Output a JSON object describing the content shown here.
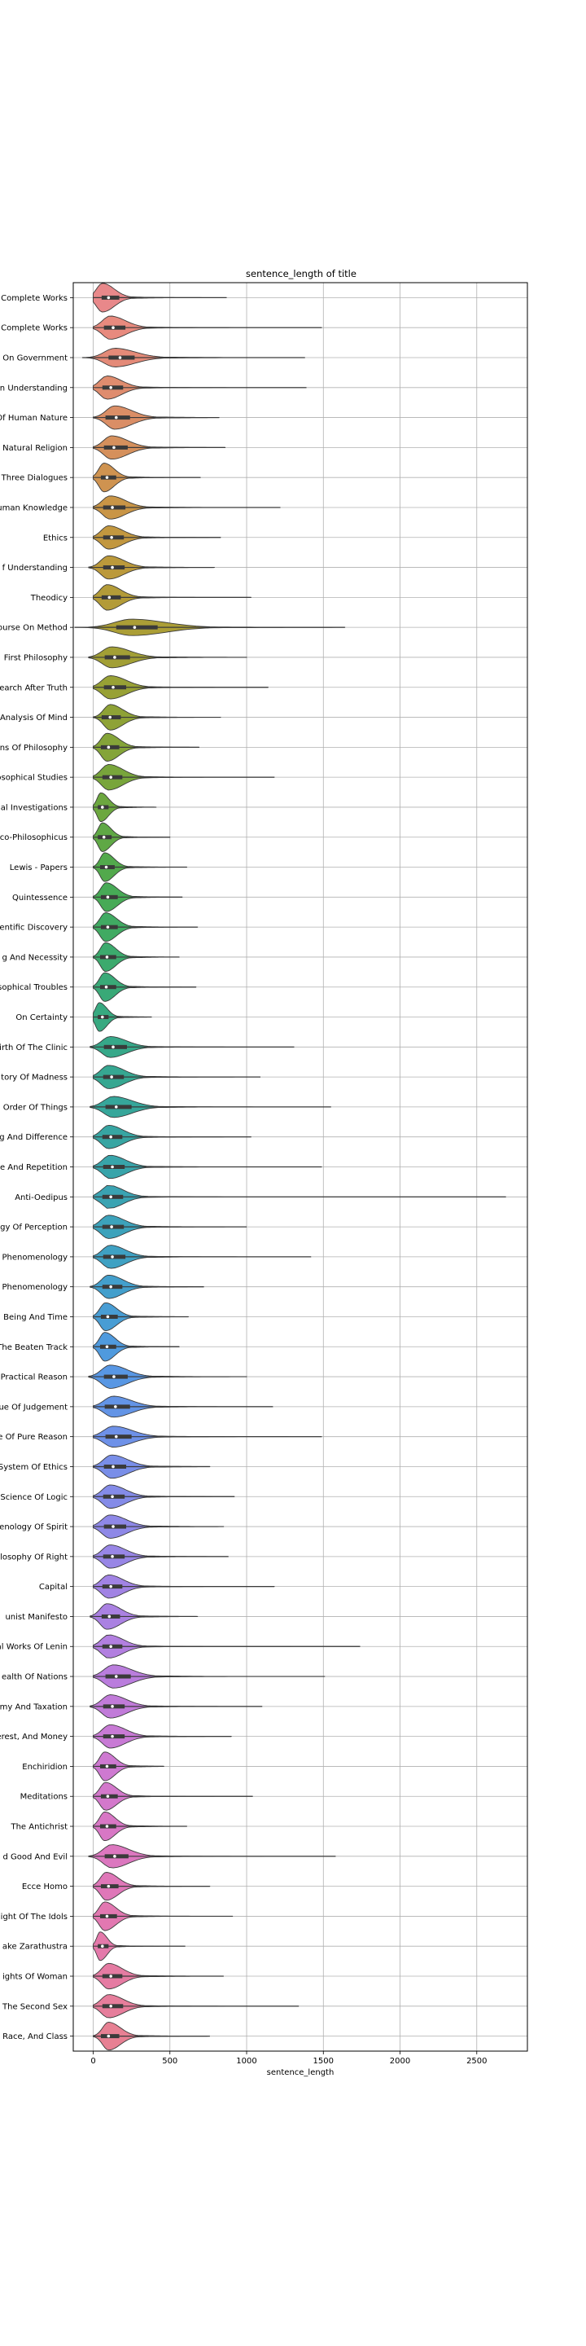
{
  "chart_data": {
    "type": "violin",
    "title": "sentence_length of title",
    "xlabel": "sentence_length",
    "ylabel": "",
    "xlim": [
      -130,
      2830
    ],
    "xticks": [
      0,
      500,
      1000,
      1500,
      2000,
      2500
    ],
    "grid": true,
    "orientation": "horizontal",
    "categories": [
      {
        "label": "Complete Works",
        "color": "#e8888a",
        "stats": {
          "min": 0,
          "q1": 55,
          "median": 100,
          "q3": 170,
          "max": 870,
          "peak": 60,
          "spread": 70,
          "density_height": 0.55
        }
      },
      {
        "label": "Complete Works",
        "color": "#e88a7e",
        "stats": {
          "min": 0,
          "q1": 70,
          "median": 130,
          "q3": 210,
          "max": 1490,
          "peak": 110,
          "spread": 90,
          "density_height": 0.35
        }
      },
      {
        "label": "On Government",
        "color": "#e48a78",
        "stats": {
          "min": -70,
          "q1": 100,
          "median": 175,
          "q3": 270,
          "max": 1380,
          "peak": 140,
          "spread": 120,
          "density_height": 0.25
        }
      },
      {
        "label": "n Understanding",
        "color": "#df8c6e",
        "stats": {
          "min": 0,
          "q1": 60,
          "median": 115,
          "q3": 195,
          "max": 1390,
          "peak": 90,
          "spread": 85,
          "density_height": 0.35
        }
      },
      {
        "label": "Of Human Nature",
        "color": "#da8e66",
        "stats": {
          "min": 0,
          "q1": 80,
          "median": 150,
          "q3": 240,
          "max": 820,
          "peak": 140,
          "spread": 100,
          "density_height": 0.35
        }
      },
      {
        "label": "Natural Religion",
        "color": "#d5905c",
        "stats": {
          "min": 0,
          "q1": 70,
          "median": 135,
          "q3": 225,
          "max": 860,
          "peak": 120,
          "spread": 95,
          "density_height": 0.35
        }
      },
      {
        "label": "Three Dialogues",
        "color": "#cf9350",
        "stats": {
          "min": 0,
          "q1": 50,
          "median": 90,
          "q3": 150,
          "max": 700,
          "peak": 70,
          "spread": 60,
          "density_height": 0.5
        }
      },
      {
        "label": "uman Knowledge",
        "color": "#c99546",
        "stats": {
          "min": 0,
          "q1": 65,
          "median": 125,
          "q3": 210,
          "max": 1220,
          "peak": 110,
          "spread": 90,
          "density_height": 0.35
        }
      },
      {
        "label": "Ethics",
        "color": "#c2973f",
        "stats": {
          "min": 0,
          "q1": 65,
          "median": 120,
          "q3": 200,
          "max": 830,
          "peak": 100,
          "spread": 85,
          "density_height": 0.35
        }
      },
      {
        "label": "f Understanding",
        "color": "#bb993b",
        "stats": {
          "min": -30,
          "q1": 65,
          "median": 125,
          "q3": 205,
          "max": 790,
          "peak": 100,
          "spread": 90,
          "density_height": 0.35
        }
      },
      {
        "label": "Theodicy",
        "color": "#b39b38",
        "stats": {
          "min": 0,
          "q1": 55,
          "median": 105,
          "q3": 180,
          "max": 1030,
          "peak": 90,
          "spread": 80,
          "density_height": 0.4
        }
      },
      {
        "label": "ourse On Method",
        "color": "#ab9e36",
        "stats": {
          "min": -120,
          "q1": 150,
          "median": 270,
          "q3": 420,
          "max": 1640,
          "peak": 250,
          "spread": 200,
          "density_height": 0.2
        }
      },
      {
        "label": "First Philosophy",
        "color": "#a29f35",
        "stats": {
          "min": -30,
          "q1": 75,
          "median": 140,
          "q3": 240,
          "max": 1000,
          "peak": 120,
          "spread": 110,
          "density_height": 0.3
        }
      },
      {
        "label": "earch After Truth",
        "color": "#98a135",
        "stats": {
          "min": 0,
          "q1": 70,
          "median": 130,
          "q3": 215,
          "max": 1140,
          "peak": 110,
          "spread": 95,
          "density_height": 0.35
        }
      },
      {
        "label": "Analysis Of Mind",
        "color": "#8ea236",
        "stats": {
          "min": 0,
          "q1": 55,
          "median": 110,
          "q3": 180,
          "max": 830,
          "peak": 110,
          "spread": 75,
          "density_height": 0.4
        }
      },
      {
        "label": "ns Of Philosophy",
        "color": "#84a438",
        "stats": {
          "min": 0,
          "q1": 50,
          "median": 100,
          "q3": 170,
          "max": 690,
          "peak": 90,
          "spread": 70,
          "density_height": 0.45
        }
      },
      {
        "label": "osophical Studies",
        "color": "#78a53b",
        "stats": {
          "min": 0,
          "q1": 60,
          "median": 115,
          "q3": 190,
          "max": 1180,
          "peak": 100,
          "spread": 85,
          "density_height": 0.4
        }
      },
      {
        "label": "al Investigations",
        "color": "#6ca73f",
        "stats": {
          "min": 0,
          "q1": 30,
          "median": 60,
          "q3": 100,
          "max": 410,
          "peak": 50,
          "spread": 45,
          "density_height": 0.9
        }
      },
      {
        "label": "co-Philosophicus",
        "color": "#5fa845",
        "stats": {
          "min": 0,
          "q1": 30,
          "median": 70,
          "q3": 120,
          "max": 500,
          "peak": 60,
          "spread": 50,
          "density_height": 0.7
        }
      },
      {
        "label": "Lewis - Papers",
        "color": "#52a94c",
        "stats": {
          "min": 0,
          "q1": 45,
          "median": 85,
          "q3": 140,
          "max": 610,
          "peak": 75,
          "spread": 55,
          "density_height": 0.55
        }
      },
      {
        "label": "Quintessence",
        "color": "#47aa56",
        "stats": {
          "min": 0,
          "q1": 50,
          "median": 95,
          "q3": 160,
          "max": 580,
          "peak": 85,
          "spread": 65,
          "density_height": 0.5
        }
      },
      {
        "label": "entific Discovery",
        "color": "#40aa62",
        "stats": {
          "min": 0,
          "q1": 50,
          "median": 95,
          "q3": 160,
          "max": 680,
          "peak": 80,
          "spread": 65,
          "density_height": 0.5
        }
      },
      {
        "label": "g And Necessity",
        "color": "#3caa6d",
        "stats": {
          "min": 0,
          "q1": 45,
          "median": 90,
          "q3": 150,
          "max": 560,
          "peak": 80,
          "spread": 60,
          "density_height": 0.5
        }
      },
      {
        "label": "sophical Troubles",
        "color": "#39a977",
        "stats": {
          "min": 0,
          "q1": 45,
          "median": 85,
          "q3": 150,
          "max": 670,
          "peak": 75,
          "spread": 60,
          "density_height": 0.55
        }
      },
      {
        "label": "On Certainty",
        "color": "#37a980",
        "stats": {
          "min": 0,
          "q1": 30,
          "median": 60,
          "q3": 100,
          "max": 380,
          "peak": 40,
          "spread": 45,
          "density_height": 0.85
        }
      },
      {
        "label": "irth Of The Clinic",
        "color": "#36a889",
        "stats": {
          "min": -20,
          "q1": 70,
          "median": 130,
          "q3": 220,
          "max": 1310,
          "peak": 110,
          "spread": 95,
          "density_height": 0.3
        }
      },
      {
        "label": "tory Of Madness",
        "color": "#36a791",
        "stats": {
          "min": 0,
          "q1": 65,
          "median": 120,
          "q3": 200,
          "max": 1090,
          "peak": 100,
          "spread": 90,
          "density_height": 0.35
        }
      },
      {
        "label": "Order Of Things",
        "color": "#36a69a",
        "stats": {
          "min": -20,
          "q1": 80,
          "median": 150,
          "q3": 250,
          "max": 1550,
          "peak": 130,
          "spread": 110,
          "density_height": 0.3
        }
      },
      {
        "label": "g And Difference",
        "color": "#37a5a2",
        "stats": {
          "min": 0,
          "q1": 60,
          "median": 115,
          "q3": 190,
          "max": 1030,
          "peak": 100,
          "spread": 85,
          "density_height": 0.35
        }
      },
      {
        "label": "e And Repetition",
        "color": "#38a4aa",
        "stats": {
          "min": 0,
          "q1": 65,
          "median": 125,
          "q3": 205,
          "max": 1490,
          "peak": 110,
          "spread": 90,
          "density_height": 0.35
        }
      },
      {
        "label": "Anti-Oedipus",
        "color": "#3aa3b2",
        "stats": {
          "min": 0,
          "q1": 60,
          "median": 115,
          "q3": 195,
          "max": 2690,
          "peak": 100,
          "spread": 85,
          "density_height": 0.35
        }
      },
      {
        "label": "gy Of Perception",
        "color": "#3ca2bb",
        "stats": {
          "min": 0,
          "q1": 60,
          "median": 120,
          "q3": 200,
          "max": 1000,
          "peak": 100,
          "spread": 90,
          "density_height": 0.35
        }
      },
      {
        "label": "Phenomenology",
        "color": "#3fa1c3",
        "stats": {
          "min": 0,
          "q1": 65,
          "median": 125,
          "q3": 210,
          "max": 1420,
          "peak": 110,
          "spread": 90,
          "density_height": 0.35
        }
      },
      {
        "label": "Phenomenology",
        "color": "#439fcc",
        "stats": {
          "min": -20,
          "q1": 60,
          "median": 115,
          "q3": 190,
          "max": 720,
          "peak": 100,
          "spread": 85,
          "density_height": 0.35
        }
      },
      {
        "label": "Being And Time",
        "color": "#489dd4",
        "stats": {
          "min": 0,
          "q1": 50,
          "median": 95,
          "q3": 160,
          "max": 620,
          "peak": 80,
          "spread": 65,
          "density_height": 0.45
        }
      },
      {
        "label": "The Beaten Track",
        "color": "#4f9ade",
        "stats": {
          "min": 0,
          "q1": 45,
          "median": 90,
          "q3": 150,
          "max": 560,
          "peak": 75,
          "spread": 60,
          "density_height": 0.5
        }
      },
      {
        "label": "Practical Reason",
        "color": "#5897e4",
        "stats": {
          "min": -30,
          "q1": 70,
          "median": 135,
          "q3": 225,
          "max": 1000,
          "peak": 110,
          "spread": 100,
          "density_height": 0.35
        }
      },
      {
        "label": "ue Of Judgement",
        "color": "#6394e6",
        "stats": {
          "min": 0,
          "q1": 75,
          "median": 145,
          "q3": 240,
          "max": 1170,
          "peak": 130,
          "spread": 105,
          "density_height": 0.3
        }
      },
      {
        "label": "e Of Pure Reason",
        "color": "#6e91e8",
        "stats": {
          "min": 0,
          "q1": 80,
          "median": 150,
          "q3": 250,
          "max": 1490,
          "peak": 130,
          "spread": 110,
          "density_height": 0.3
        }
      },
      {
        "label": "System Of Ethics",
        "color": "#798ee8",
        "stats": {
          "min": 0,
          "q1": 70,
          "median": 130,
          "q3": 215,
          "max": 760,
          "peak": 120,
          "spread": 95,
          "density_height": 0.35
        }
      },
      {
        "label": "Science Of Logic",
        "color": "#848be8",
        "stats": {
          "min": 0,
          "q1": 65,
          "median": 125,
          "q3": 205,
          "max": 920,
          "peak": 110,
          "spread": 90,
          "density_height": 0.35
        }
      },
      {
        "label": "nenology Of Spirit",
        "color": "#8e88e7",
        "stats": {
          "min": 0,
          "q1": 70,
          "median": 130,
          "q3": 215,
          "max": 850,
          "peak": 110,
          "spread": 95,
          "density_height": 0.35
        }
      },
      {
        "label": "losophy Of Right",
        "color": "#9886e6",
        "stats": {
          "min": 0,
          "q1": 65,
          "median": 125,
          "q3": 205,
          "max": 880,
          "peak": 110,
          "spread": 90,
          "density_height": 0.35
        }
      },
      {
        "label": "Capital",
        "color": "#a183e4",
        "stats": {
          "min": 0,
          "q1": 60,
          "median": 115,
          "q3": 190,
          "max": 1180,
          "peak": 100,
          "spread": 85,
          "density_height": 0.35
        }
      },
      {
        "label": "unist Manifesto",
        "color": "#aa81e2",
        "stats": {
          "min": -20,
          "q1": 55,
          "median": 105,
          "q3": 175,
          "max": 680,
          "peak": 90,
          "spread": 80,
          "density_height": 0.4
        }
      },
      {
        "label": "al Works Of Lenin",
        "color": "#b27fe0",
        "stats": {
          "min": 0,
          "q1": 60,
          "median": 115,
          "q3": 190,
          "max": 1740,
          "peak": 100,
          "spread": 85,
          "density_height": 0.35
        }
      },
      {
        "label": "ealth Of Nations",
        "color": "#ba7ddd",
        "stats": {
          "min": 0,
          "q1": 80,
          "median": 150,
          "q3": 245,
          "max": 1510,
          "peak": 130,
          "spread": 105,
          "density_height": 0.35
        }
      },
      {
        "label": "my And Taxation",
        "color": "#c17bd9",
        "stats": {
          "min": -20,
          "q1": 65,
          "median": 125,
          "q3": 205,
          "max": 1100,
          "peak": 110,
          "spread": 95,
          "density_height": 0.35
        }
      },
      {
        "label": "erest, And Money",
        "color": "#c87ad5",
        "stats": {
          "min": 0,
          "q1": 65,
          "median": 125,
          "q3": 205,
          "max": 900,
          "peak": 110,
          "spread": 90,
          "density_height": 0.35
        }
      },
      {
        "label": "Enchiridion",
        "color": "#ce79d1",
        "stats": {
          "min": 0,
          "q1": 45,
          "median": 90,
          "q3": 150,
          "max": 460,
          "peak": 75,
          "spread": 60,
          "density_height": 0.5
        }
      },
      {
        "label": "Meditations",
        "color": "#d378cb",
        "stats": {
          "min": 0,
          "q1": 50,
          "median": 95,
          "q3": 160,
          "max": 1040,
          "peak": 80,
          "spread": 65,
          "density_height": 0.45
        }
      },
      {
        "label": "The Antichrist",
        "color": "#d877c5",
        "stats": {
          "min": 0,
          "q1": 45,
          "median": 90,
          "q3": 150,
          "max": 610,
          "peak": 75,
          "spread": 60,
          "density_height": 0.5
        }
      },
      {
        "label": "d Good And Evil",
        "color": "#dc77bf",
        "stats": {
          "min": -30,
          "q1": 75,
          "median": 140,
          "q3": 230,
          "max": 1580,
          "peak": 120,
          "spread": 100,
          "density_height": 0.35
        }
      },
      {
        "label": "Ecce Homo",
        "color": "#df77b8",
        "stats": {
          "min": 0,
          "q1": 50,
          "median": 100,
          "q3": 165,
          "max": 760,
          "peak": 85,
          "spread": 70,
          "density_height": 0.45
        }
      },
      {
        "label": "ight Of The Idols",
        "color": "#e278b1",
        "stats": {
          "min": 0,
          "q1": 45,
          "median": 90,
          "q3": 155,
          "max": 910,
          "peak": 75,
          "spread": 65,
          "density_height": 0.5
        }
      },
      {
        "label": "ake Zarathustra",
        "color": "#e479aa",
        "stats": {
          "min": 0,
          "q1": 30,
          "median": 60,
          "q3": 100,
          "max": 600,
          "peak": 45,
          "spread": 40,
          "density_height": 0.9
        }
      },
      {
        "label": "ights Of Woman",
        "color": "#e57ba2",
        "stats": {
          "min": 0,
          "q1": 60,
          "median": 115,
          "q3": 190,
          "max": 850,
          "peak": 100,
          "spread": 80,
          "density_height": 0.4
        }
      },
      {
        "label": "The Second Sex",
        "color": "#e67d9b",
        "stats": {
          "min": 0,
          "q1": 60,
          "median": 115,
          "q3": 195,
          "max": 1340,
          "peak": 100,
          "spread": 85,
          "density_height": 0.35
        }
      },
      {
        "label": "Race, And Class",
        "color": "#e78093",
        "stats": {
          "min": 0,
          "q1": 50,
          "median": 100,
          "q3": 170,
          "max": 760,
          "peak": 100,
          "spread": 70,
          "density_height": 0.45
        }
      }
    ]
  }
}
